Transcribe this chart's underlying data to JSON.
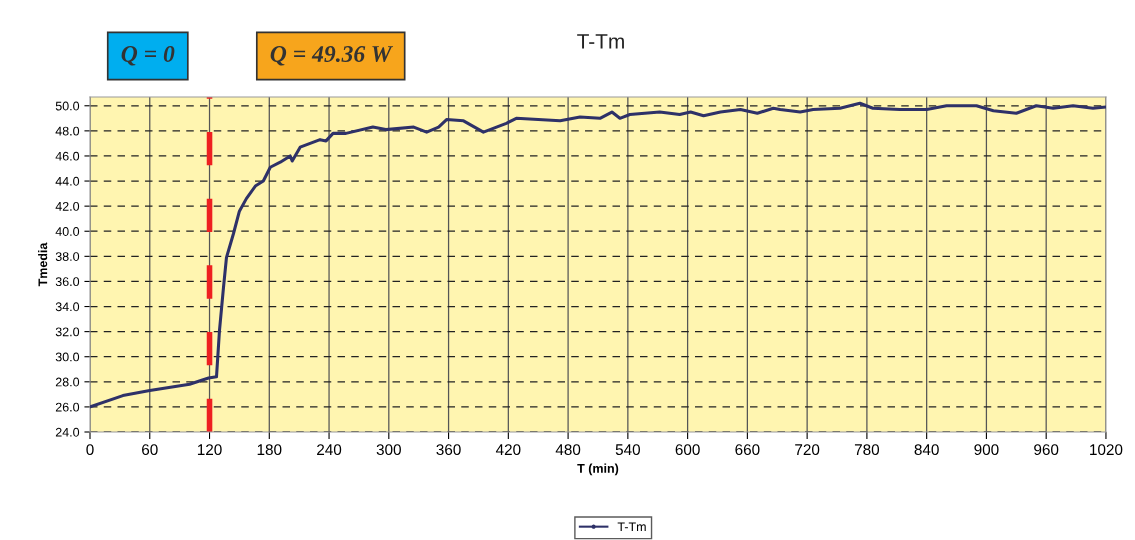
{
  "chart_data": {
    "type": "line",
    "title": "T-Tm",
    "xlabel": "T (min)",
    "ylabel": "Tmedia",
    "annotations": [
      "Q = 0",
      "Q = 49.36 W"
    ],
    "xlim": [
      0,
      1020
    ],
    "xticks": [
      0,
      60,
      120,
      180,
      240,
      300,
      360,
      420,
      480,
      540,
      600,
      660,
      720,
      780,
      840,
      900,
      960,
      1020
    ],
    "ylim": [
      24,
      50.7
    ],
    "yticks": [
      {
        "value": 24,
        "label": "24.0"
      },
      {
        "value": 26,
        "label": "26.0"
      },
      {
        "value": 28,
        "label": "28.0"
      },
      {
        "value": 30,
        "label": "30.0"
      },
      {
        "value": 32,
        "label": "32.0"
      },
      {
        "value": 34,
        "label": "34.0"
      },
      {
        "value": 36,
        "label": "36.0"
      },
      {
        "value": 38,
        "label": "38.0"
      },
      {
        "value": 40,
        "label": "40.0"
      },
      {
        "value": 42,
        "label": "42.0"
      },
      {
        "value": 44,
        "label": "44.0"
      },
      {
        "value": 46,
        "label": "46.0"
      },
      {
        "value": 48,
        "label": "48.0"
      },
      {
        "value": 50,
        "label": "50.0"
      }
    ],
    "grid": true,
    "legend": "bottom",
    "marker": "none",
    "line_style": "solid",
    "ref_lines": [
      {
        "axis": "x",
        "value": 120,
        "color": "#ee2020",
        "line_style": "dashed"
      }
    ],
    "series": [
      {
        "name": "T-Tm",
        "color": "#2e3168",
        "x": [
          0,
          33,
          60,
          100,
          119,
          127,
          130,
          134,
          137,
          144,
          150,
          157,
          166,
          174,
          181,
          191,
          201,
          203,
          211,
          231,
          237,
          244,
          257,
          284,
          297,
          325,
          338,
          350,
          358,
          375,
          395,
          418,
          428,
          472,
          492,
          512,
          524,
          532,
          542,
          572,
          592,
          603,
          616,
          633,
          653,
          670,
          686,
          693,
          713,
          726,
          753,
          773,
          786,
          813,
          840,
          860,
          890,
          907,
          930,
          950,
          967,
          987,
          1007,
          1020
        ],
        "values": [
          26.0,
          26.9,
          27.3,
          27.8,
          28.3,
          28.4,
          32.1,
          35.5,
          37.9,
          39.8,
          41.6,
          42.6,
          43.6,
          44.0,
          45.1,
          45.5,
          46.0,
          45.6,
          46.7,
          47.3,
          47.2,
          47.8,
          47.8,
          48.3,
          48.1,
          48.3,
          47.9,
          48.3,
          48.9,
          48.8,
          47.9,
          48.6,
          49.0,
          48.8,
          49.1,
          49.0,
          49.5,
          49.0,
          49.3,
          49.5,
          49.3,
          49.5,
          49.2,
          49.5,
          49.7,
          49.4,
          49.8,
          49.7,
          49.5,
          49.7,
          49.8,
          50.2,
          49.8,
          49.7,
          49.7,
          50.0,
          50.0,
          49.6,
          49.4,
          50.0,
          49.8,
          50.0,
          49.8,
          49.9
        ]
      }
    ]
  }
}
